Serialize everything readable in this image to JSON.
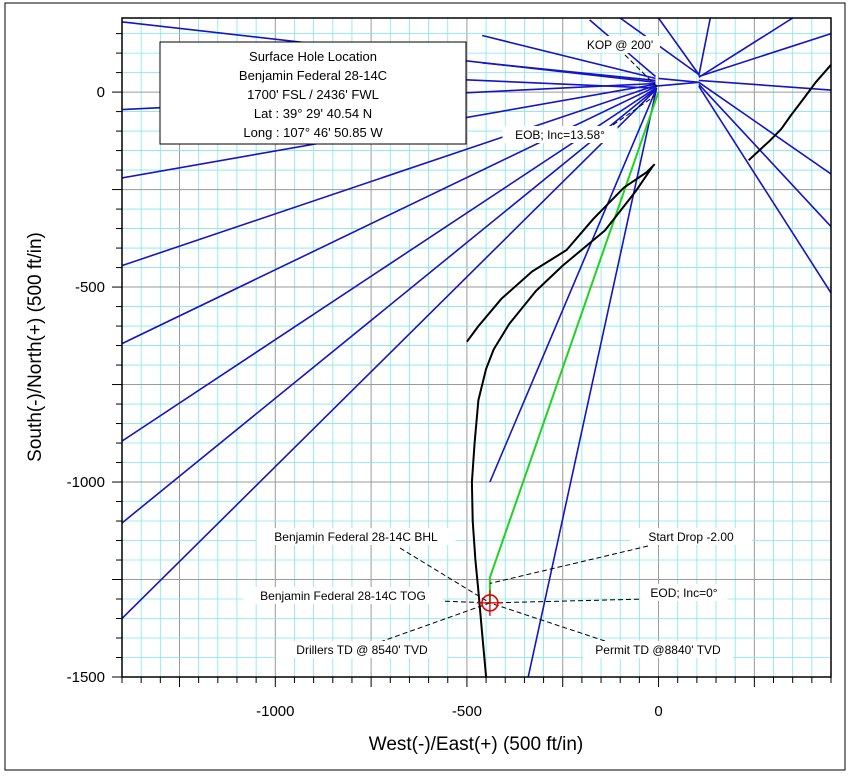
{
  "chart_data": {
    "type": "line",
    "title": "",
    "xlabel": "West(-)/East(+) (500 ft/in)",
    "ylabel": "South(-)/North(+) (500 ft/in)",
    "xlim": [
      -1400,
      450
    ],
    "ylim": [
      -1500,
      190
    ],
    "xticks": [
      -1000,
      -500,
      0
    ],
    "yticks": [
      0,
      -500,
      -1000,
      -1500
    ],
    "minor_grid_step": 50,
    "major_grid_step": 250,
    "grid": true,
    "colors": {
      "minor_grid": "#7fe7f1",
      "major_grid": "#9a9a9a",
      "offset_wells": "#1414c8",
      "planned_path": "#21d321",
      "existing_well": "#000000",
      "target": "#e00000"
    },
    "surface_box": {
      "lines": [
        "Surface Hole Location",
        "Benjamin Federal 28-14C",
        "1700' FSL / 2436' FWL",
        "Lat :  39° 29' 40.54 N",
        "Long :  107° 46' 50.85 W"
      ]
    },
    "series": [
      {
        "role": "offset",
        "segments": [
          [
            [
              -8,
              25
            ],
            [
              -1400,
              180
            ]
          ],
          [
            [
              -8,
              22
            ],
            [
              -1400,
              -45
            ]
          ],
          [
            [
              -8,
              20
            ],
            [
              -1400,
              -220
            ]
          ],
          [
            [
              -5,
              18
            ],
            [
              -1400,
              -445
            ]
          ],
          [
            [
              -5,
              15
            ],
            [
              -1400,
              -645
            ]
          ],
          [
            [
              -5,
              12
            ],
            [
              -1400,
              -895
            ]
          ],
          [
            [
              -5,
              10
            ],
            [
              -1400,
              -1105
            ]
          ],
          [
            [
              -5,
              8
            ],
            [
              -1400,
              -1350
            ]
          ],
          [
            [
              -8,
              35
            ],
            [
              -460,
              145
            ]
          ],
          [
            [
              -8,
              30
            ],
            [
              -460,
              75
            ]
          ],
          [
            [
              -8,
              40
            ],
            [
              -180,
              185
            ]
          ],
          [
            [
              -5,
              10
            ],
            [
              -440,
              -1000
            ]
          ],
          [
            [
              -5,
              10
            ],
            [
              -340,
              -1500
            ]
          ],
          [
            [
              -5,
              10
            ],
            [
              -585,
              35
            ]
          ],
          [
            [
              105,
              40
            ],
            [
              450,
              150
            ]
          ],
          [
            [
              105,
              30
            ],
            [
              450,
              5
            ]
          ],
          [
            [
              105,
              25
            ],
            [
              450,
              -210
            ]
          ],
          [
            [
              105,
              20
            ],
            [
              450,
              -345
            ]
          ],
          [
            [
              105,
              15
            ],
            [
              450,
              -515
            ]
          ],
          [
            [
              105,
              45
            ],
            [
              0,
              190
            ]
          ],
          [
            [
              105,
              45
            ],
            [
              -100,
              190
            ]
          ],
          [
            [
              105,
              42
            ],
            [
              135,
              190
            ]
          ],
          [
            [
              105,
              38
            ],
            [
              350,
              190
            ]
          ],
          [
            [
              105,
              25
            ],
            [
              0,
              35
            ]
          ],
          [
            [
              105,
              25
            ],
            [
              -10,
              15
            ]
          ]
        ]
      },
      {
        "role": "planned",
        "segments": [
          [
            [
              0,
              0
            ],
            [
              -440,
              -1245
            ],
            [
              -440,
              -1310
            ]
          ]
        ]
      },
      {
        "role": "existing",
        "segments": [
          [
            [
              -15,
              -190
            ],
            [
              -60,
              -255
            ],
            [
              -140,
              -355
            ],
            [
              -250,
              -445
            ],
            [
              -320,
              -510
            ],
            [
              -390,
              -595
            ],
            [
              -430,
              -660
            ],
            [
              -450,
              -710
            ],
            [
              -470,
              -790
            ],
            [
              -480,
              -900
            ],
            [
              -487,
              -1000
            ],
            [
              -485,
              -1100
            ],
            [
              -478,
              -1200
            ],
            [
              -470,
              -1280
            ],
            [
              -460,
              -1390
            ],
            [
              -450,
              -1500
            ]
          ],
          [
            [
              -500,
              -640
            ],
            [
              -470,
              -600
            ],
            [
              -410,
              -530
            ],
            [
              -330,
              -460
            ],
            [
              -240,
              -405
            ],
            [
              -170,
              -325
            ],
            [
              -90,
              -245
            ],
            [
              -30,
              -205
            ],
            [
              -10,
              -185
            ]
          ],
          [
            [
              235,
              -175
            ],
            [
              290,
              -125
            ],
            [
              320,
              -95
            ],
            [
              345,
              -60
            ],
            [
              380,
              -15
            ],
            [
              410,
              25
            ],
            [
              450,
              70
            ]
          ]
        ]
      }
    ],
    "target": {
      "x": -440,
      "y": -1310
    },
    "annotations": [
      {
        "text": "KOP @ 200'",
        "to": [
          0,
          10
        ]
      },
      {
        "text": "EOB; Inc=13.58°",
        "to": [
          -10,
          -10
        ]
      },
      {
        "text": "Benjamin Federal 28-14C BHL",
        "to": [
          -440,
          -1310
        ]
      },
      {
        "text": "Start Drop -2.00",
        "to": [
          -440,
          -1260
        ]
      },
      {
        "text": "Benjamin Federal 28-14C TOG",
        "to": [
          -440,
          -1310
        ]
      },
      {
        "text": "EOD; Inc=0°",
        "to": [
          -440,
          -1310
        ]
      },
      {
        "text": "Drillers TD @ 8540' TVD",
        "to": [
          -440,
          -1310
        ]
      },
      {
        "text": "Permit TD @8840' TVD",
        "to": [
          -440,
          -1310
        ]
      }
    ]
  }
}
